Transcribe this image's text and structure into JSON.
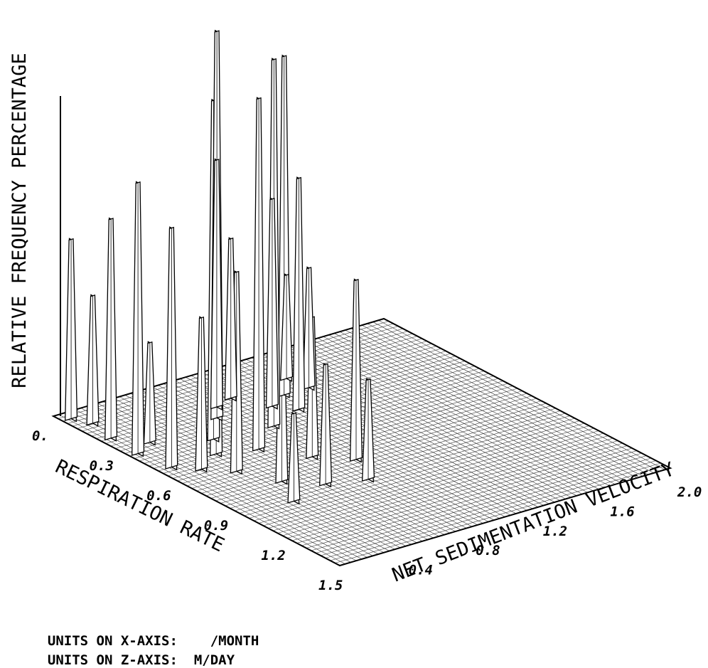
{
  "chart_data": {
    "type": "surface",
    "title": "",
    "xlabel": "RESPIRATION RATE",
    "zlabel": "NET SEDIMENTATION VELOCITY",
    "ylabel": "RELATIVE FREQUENCY PERCENTAGE",
    "x_ticks": [
      "0.",
      "0.3",
      "0.6",
      "0.9",
      "1.2",
      "1.5"
    ],
    "z_ticks": [
      "0.4",
      "0.8",
      "1.2",
      "1.6",
      "2.0"
    ],
    "x_range": [
      0,
      1.5
    ],
    "z_range": [
      0,
      2.0
    ],
    "grid": true,
    "peaks": [
      {
        "x": 0.05,
        "z": 0.05,
        "height": 0.45
      },
      {
        "x": 0.12,
        "z": 0.1,
        "height": 0.32
      },
      {
        "x": 0.25,
        "z": 0.06,
        "height": 0.55
      },
      {
        "x": 0.35,
        "z": 0.18,
        "height": 0.25
      },
      {
        "x": 0.4,
        "z": 0.05,
        "height": 0.68
      },
      {
        "x": 0.55,
        "z": 0.08,
        "height": 0.6
      },
      {
        "x": 0.62,
        "z": 0.18,
        "height": 0.38
      },
      {
        "x": 0.7,
        "z": 0.3,
        "height": 0.5
      },
      {
        "x": 0.55,
        "z": 0.35,
        "height": 0.8
      },
      {
        "x": 0.45,
        "z": 0.45,
        "height": 0.85
      },
      {
        "x": 0.6,
        "z": 0.55,
        "height": 0.88
      },
      {
        "x": 0.32,
        "z": 0.62,
        "height": 0.97
      },
      {
        "x": 0.48,
        "z": 0.78,
        "height": 0.92
      },
      {
        "x": 0.25,
        "z": 0.7,
        "height": 0.62
      },
      {
        "x": 0.22,
        "z": 0.82,
        "height": 0.4
      },
      {
        "x": 0.35,
        "z": 0.92,
        "height": 0.52
      },
      {
        "x": 0.42,
        "z": 1.0,
        "height": 0.58
      },
      {
        "x": 0.3,
        "z": 1.05,
        "height": 0.85
      },
      {
        "x": 0.2,
        "z": 1.18,
        "height": 0.26
      },
      {
        "x": 0.3,
        "z": 1.2,
        "height": 0.3
      },
      {
        "x": 0.85,
        "z": 0.4,
        "height": 0.42
      },
      {
        "x": 0.95,
        "z": 0.55,
        "height": 0.3
      },
      {
        "x": 0.75,
        "z": 0.7,
        "height": 0.35
      },
      {
        "x": 0.85,
        "z": 0.85,
        "height": 0.45
      },
      {
        "x": 1.0,
        "z": 0.75,
        "height": 0.25
      },
      {
        "x": 1.0,
        "z": 0.3,
        "height": 0.22
      }
    ]
  },
  "units": {
    "x_label": "UNITS ON X-AXIS:",
    "x_value": "/MONTH",
    "z_label": "UNITS ON Z-AXIS:",
    "z_value": "M/DAY"
  }
}
